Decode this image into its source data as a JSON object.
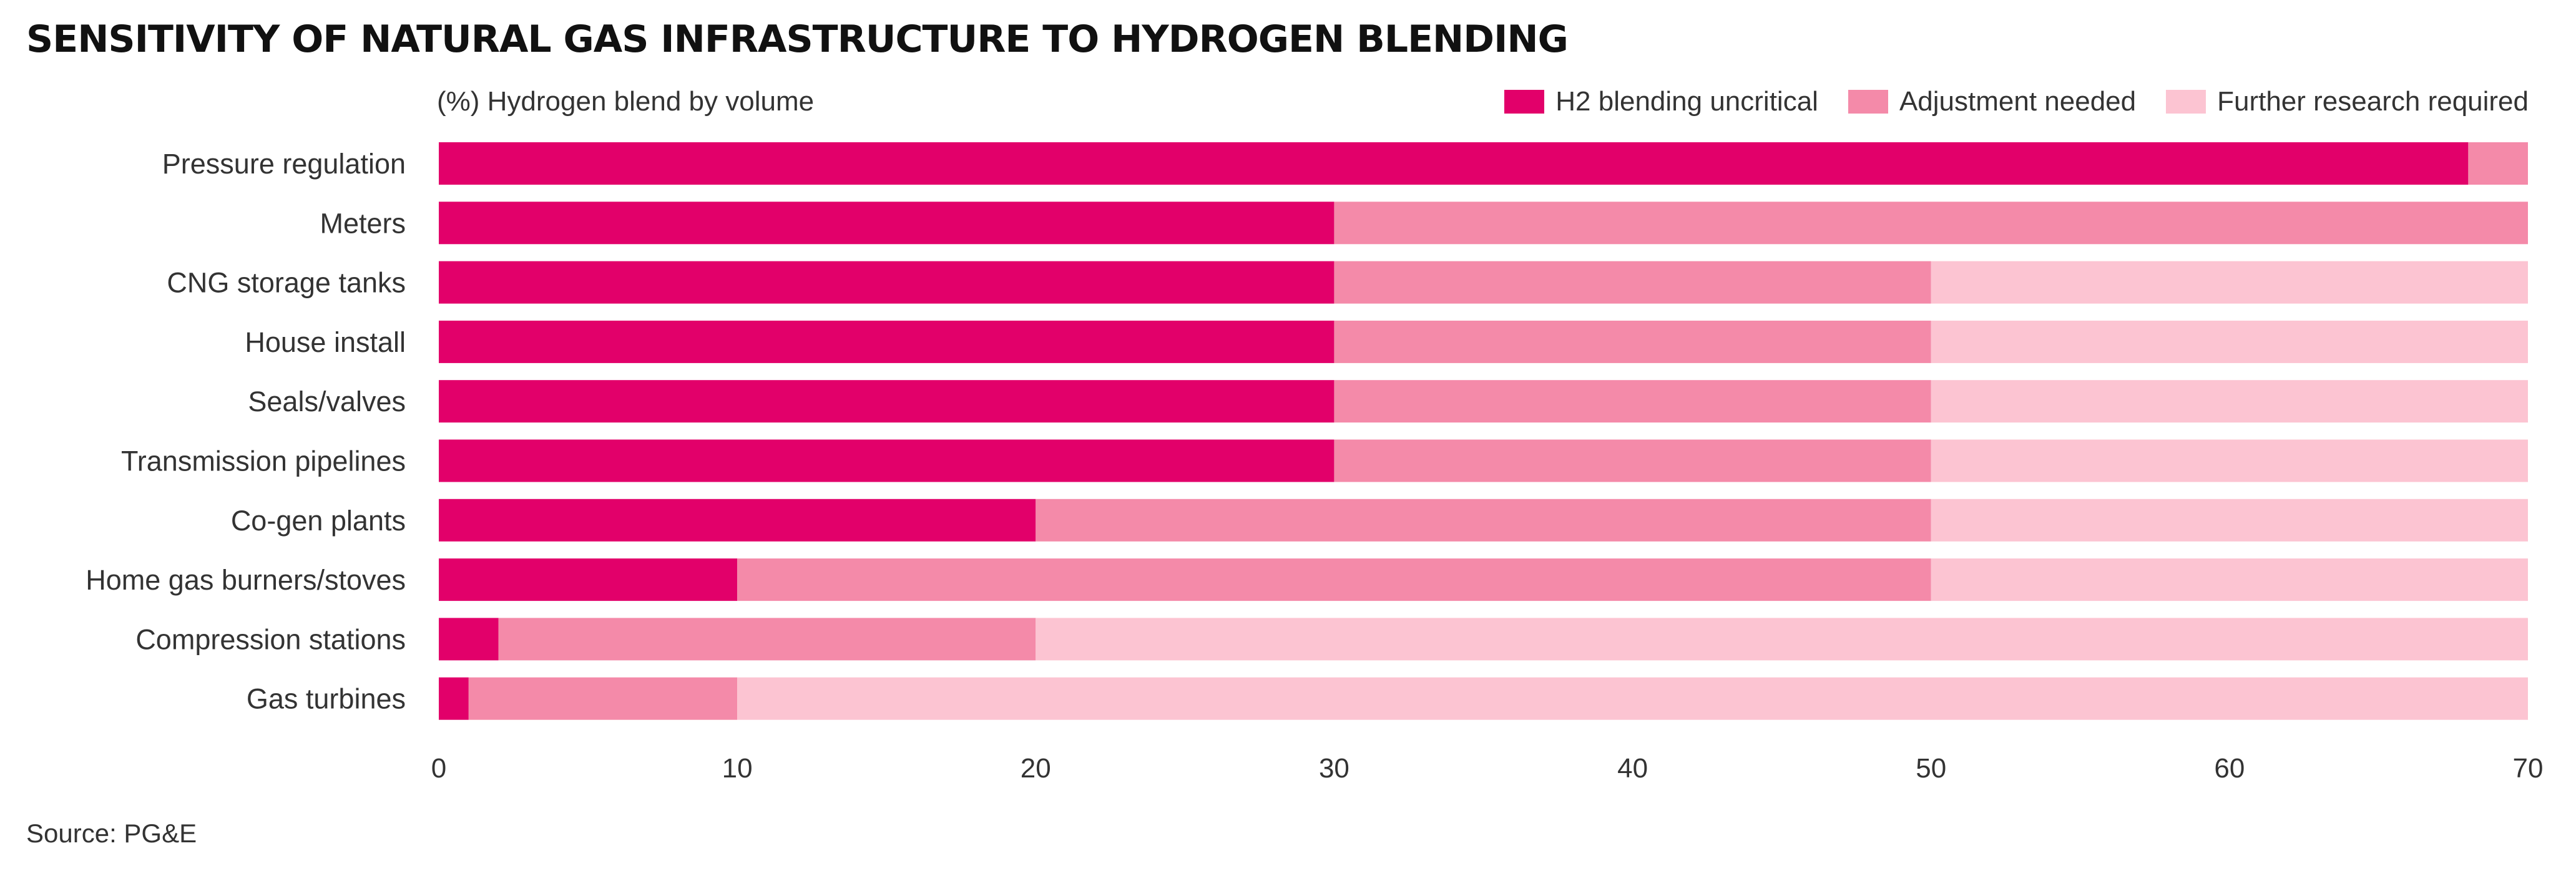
{
  "title": "SENSITIVITY OF NATURAL GAS INFRASTRUCTURE TO HYDROGEN BLENDING",
  "subtitle": "(%) Hydrogen blend by volume",
  "source": "Source: PG&E",
  "legend": [
    {
      "label": "H2 blending uncritical",
      "color": "#e2006a"
    },
    {
      "label": "Adjustment needed",
      "color": "#f48aa9"
    },
    {
      "label": "Further research required",
      "color": "#fcc4d2"
    }
  ],
  "chart_data": {
    "type": "bar",
    "orientation": "horizontal",
    "stacked": true,
    "title": "SENSITIVITY OF NATURAL GAS INFRASTRUCTURE TO HYDROGEN BLENDING",
    "xlabel": "(%) Hydrogen blend by volume",
    "ylabel": "",
    "xlim": [
      0,
      70
    ],
    "xticks": [
      0,
      10,
      20,
      30,
      40,
      50,
      60,
      70
    ],
    "grid": false,
    "legend_position": "top-right",
    "categories": [
      "Pressure regulation",
      "Meters",
      "CNG storage tanks",
      "House install",
      "Seals/valves",
      "Transmission pipelines",
      "Co-gen plants",
      "Home gas burners/stoves",
      "Compression stations",
      "Gas turbines"
    ],
    "series": [
      {
        "name": "H2 blending uncritical",
        "color": "#e2006a",
        "values": [
          68,
          30,
          30,
          30,
          30,
          30,
          20,
          10,
          2,
          1
        ]
      },
      {
        "name": "Adjustment needed",
        "color": "#f48aa9",
        "values": [
          2,
          40,
          20,
          20,
          20,
          20,
          30,
          40,
          18,
          9
        ]
      },
      {
        "name": "Further research required",
        "color": "#fcc4d2",
        "values": [
          0,
          0,
          20,
          20,
          20,
          20,
          20,
          20,
          50,
          60
        ]
      }
    ]
  }
}
